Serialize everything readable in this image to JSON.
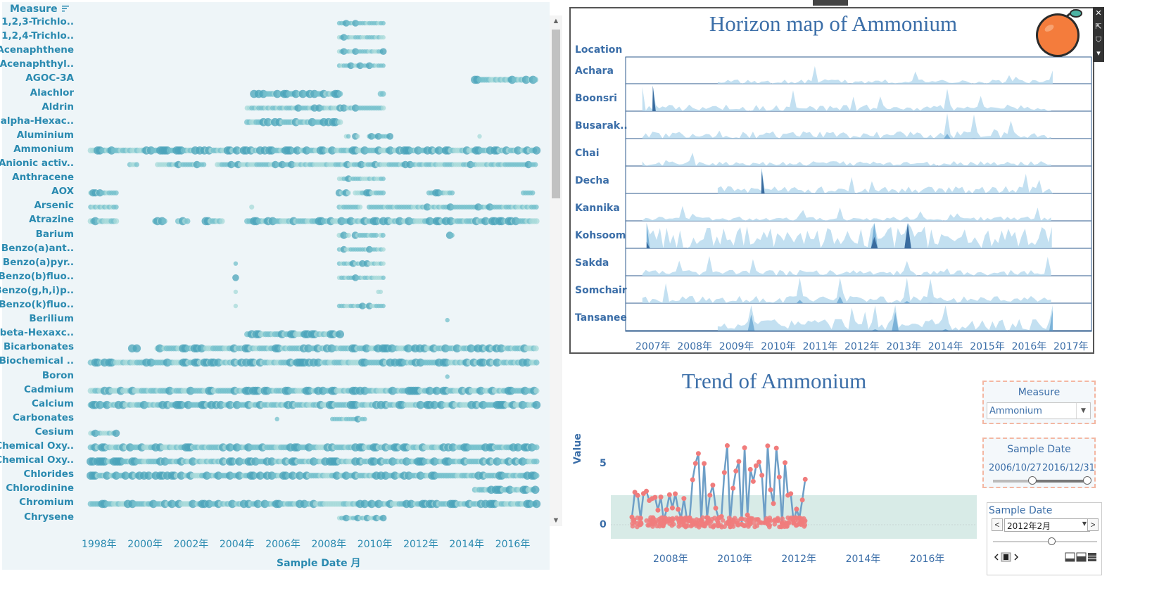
{
  "left_panel": {
    "header": "Measure",
    "measures": [
      "1,2,3-Trichlo..",
      "1,2,4-Trichlo..",
      "Acenaphthene",
      "Acenaphthyl..",
      "AGOC-3A",
      "Alachlor",
      "Aldrin",
      "alpha-Hexac..",
      "Aluminium",
      "Ammonium",
      "Anionic activ..",
      "Anthracene",
      "AOX",
      "Arsenic",
      "Atrazine",
      "Barium",
      "Benzo(a)ant..",
      "Benzo(a)pyr..",
      "Benzo(b)fluo..",
      "Benzo(g,h,i)p..",
      "Benzo(k)fluo..",
      "Berilium",
      "beta-Hexaxc..",
      "Bicarbonates",
      "Biochemical ..",
      "Boron",
      "Cadmium",
      "Calcium",
      "Carbonates",
      "Cesium",
      "Chemical Oxy..",
      "Chemical Oxy..",
      "Chlorides",
      "Chlorodinine",
      "Chromium",
      "Chrysene"
    ],
    "x_ticks": [
      "1998年",
      "2000年",
      "2002年",
      "2004年",
      "2006年",
      "2008年",
      "2010年",
      "2012年",
      "2014年",
      "2016年"
    ],
    "x_title": "Sample Date 月",
    "colors": {
      "light": "#a7d9d9",
      "mid": "#74c0cc",
      "dark": "#4aa3ba",
      "bg": "#eef5f8"
    }
  },
  "horizon": {
    "title": "Horizon map of Ammonium",
    "location_header": "Location",
    "locations": [
      "Achara",
      "Boonsri",
      "Busarak..",
      "Chai",
      "Decha",
      "Kannika",
      "Kohsoom",
      "Sakda",
      "Somchair",
      "Tansanee"
    ],
    "years": [
      "2007年",
      "2008年",
      "2009年",
      "2010年",
      "2011年",
      "2012年",
      "2013年",
      "2014年",
      "2015年",
      "2016年",
      "2017年"
    ],
    "colors": {
      "band1": "#b9dbef",
      "band2": "#6fa9d4",
      "band3": "#2f5f95",
      "line": "#2c5a8c"
    },
    "logo": "orange-logo"
  },
  "trend": {
    "title": "Trend of Ammonium",
    "ylabel": "Value",
    "y_ticks": [
      "0",
      "5"
    ],
    "x_ticks": [
      "2008年",
      "2010年",
      "2012年",
      "2014年",
      "2016年"
    ],
    "colors": {
      "line": "#6e9fc7",
      "marker": "#f07c7c",
      "band": "#d8ebe7"
    }
  },
  "filters": {
    "measure": {
      "title": "Measure",
      "value": "Ammonium"
    },
    "sample_date": {
      "title": "Sample Date",
      "start": "2006/10/27",
      "end": "2016/12/31"
    },
    "month_picker": {
      "title": "Sample Date",
      "value": "2012年2月",
      "prev": "<",
      "next": ">"
    }
  },
  "toolbar_icons": [
    "close-icon",
    "popout-icon",
    "filter-icon",
    "menu-caret-icon"
  ]
}
